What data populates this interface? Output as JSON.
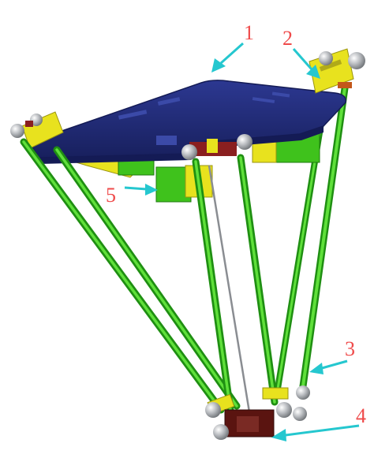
{
  "figure": {
    "callouts": [
      {
        "id": "1",
        "label": "1"
      },
      {
        "id": "2",
        "label": "2"
      },
      {
        "id": "3",
        "label": "3"
      },
      {
        "id": "4",
        "label": "4"
      },
      {
        "id": "5",
        "label": "5"
      }
    ],
    "colors": {
      "platform": "#1f2a72",
      "platform_edge": "#141b55",
      "motor": "#3fc21c",
      "bracket": "#e8e21e",
      "arm": "#39c41c",
      "arm_dark": "#1f8f12",
      "joint": "#b9bcc0",
      "joint_dark": "#6f7377",
      "arrow": "#25c7cf",
      "label": "#ef4b4b",
      "end_effector": "#5a1410"
    }
  }
}
